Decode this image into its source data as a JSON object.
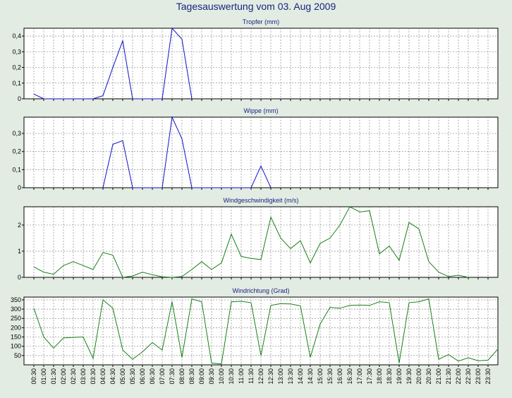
{
  "title": "Tagesauswertung vom 03. Aug 2009",
  "colors": {
    "background": "#e3ece3",
    "plot_bg": "#ffffff",
    "grid": "#8a8a8a",
    "blue": "#1010c8",
    "green": "#178017",
    "title": "#1a237e"
  },
  "time_labels": [
    "00:30",
    "01:00",
    "01:30",
    "02:00",
    "02:30",
    "03:00",
    "03:30",
    "04:00",
    "04:30",
    "05:00",
    "05:30",
    "06:00",
    "06:30",
    "07:00",
    "07:30",
    "08:00",
    "08:30",
    "09:00",
    "09:30",
    "10:00",
    "10:30",
    "11:00",
    "11:30",
    "12:00",
    "12:30",
    "13:00",
    "13:30",
    "14:00",
    "14:30",
    "15:00",
    "15:30",
    "16:00",
    "16:30",
    "17:00",
    "17:30",
    "18:00",
    "18:30",
    "19:00",
    "19:30",
    "20:00",
    "20:30",
    "21:00",
    "21:30",
    "22:00",
    "22:30",
    "23:00",
    "23:30"
  ],
  "chart_data": [
    {
      "type": "line",
      "title": "Tropfer (mm)",
      "xlabel": "",
      "ylabel": "",
      "ylim": [
        0,
        0.45
      ],
      "yticks": [
        0,
        0.1,
        0.2,
        0.3,
        0.4
      ],
      "ytick_labels": [
        "0",
        "0,1",
        "0,2",
        "0,3",
        "0,4"
      ],
      "grid": true,
      "series": [
        {
          "color": "blue",
          "points": [
            [
              0,
              0.03
            ],
            [
              1,
              0
            ],
            [
              6,
              0
            ],
            [
              7,
              0.02
            ],
            [
              8,
              0.2
            ],
            [
              9,
              0.37
            ],
            [
              10,
              0
            ],
            [
              13,
              0
            ],
            [
              14,
              0.45
            ],
            [
              15,
              0.38
            ],
            [
              16,
              0
            ]
          ]
        }
      ]
    },
    {
      "type": "line",
      "title": "Wippe (mm)",
      "xlabel": "",
      "ylabel": "",
      "ylim": [
        0,
        0.39
      ],
      "yticks": [
        0,
        0.1,
        0.2,
        0.3
      ],
      "ytick_labels": [
        "0",
        "0,1",
        "0,2",
        "0,3"
      ],
      "grid": true,
      "series": [
        {
          "color": "blue",
          "points": [
            [
              7,
              0
            ],
            [
              8,
              0.24
            ],
            [
              9,
              0.26
            ],
            [
              10,
              0
            ],
            [
              13,
              0
            ],
            [
              14,
              0.39
            ],
            [
              15,
              0.27
            ],
            [
              16,
              0
            ],
            [
              22,
              0
            ],
            [
              23,
              0.12
            ],
            [
              24,
              0
            ]
          ]
        }
      ]
    },
    {
      "type": "line",
      "title": "Windgeschwindigkeit (m/s)",
      "xlabel": "",
      "ylabel": "",
      "ylim": [
        0,
        2.7
      ],
      "yticks": [
        0,
        1,
        2
      ],
      "ytick_labels": [
        "0",
        "1",
        "2"
      ],
      "grid": true,
      "series": [
        {
          "color": "green",
          "points": [
            [
              0,
              0.4
            ],
            [
              1,
              0.2
            ],
            [
              2,
              0.12
            ],
            [
              3,
              0.45
            ],
            [
              4,
              0.6
            ],
            [
              5,
              0.45
            ],
            [
              6,
              0.3
            ],
            [
              7,
              0.95
            ],
            [
              8,
              0.85
            ],
            [
              9,
              0
            ],
            [
              10,
              0.05
            ],
            [
              11,
              0.2
            ],
            [
              12,
              0.1
            ],
            [
              13,
              0.02
            ],
            [
              14,
              0
            ],
            [
              15,
              0.03
            ],
            [
              16,
              0.3
            ],
            [
              17,
              0.6
            ],
            [
              18,
              0.3
            ],
            [
              19,
              0.55
            ],
            [
              20,
              1.65
            ],
            [
              21,
              0.8
            ],
            [
              22,
              0.72
            ],
            [
              23,
              0.68
            ],
            [
              24,
              2.3
            ],
            [
              25,
              1.5
            ],
            [
              26,
              1.1
            ],
            [
              27,
              1.4
            ],
            [
              28,
              0.55
            ],
            [
              29,
              1.3
            ],
            [
              30,
              1.5
            ],
            [
              31,
              2.0
            ],
            [
              32,
              2.7
            ],
            [
              33,
              2.5
            ],
            [
              34,
              2.55
            ],
            [
              35,
              0.9
            ],
            [
              36,
              1.2
            ],
            [
              37,
              0.65
            ],
            [
              38,
              2.1
            ],
            [
              39,
              1.85
            ],
            [
              40,
              0.6
            ],
            [
              41,
              0.2
            ],
            [
              42,
              0.03
            ],
            [
              43,
              0.08
            ],
            [
              44,
              0
            ]
          ]
        }
      ]
    },
    {
      "type": "line",
      "title": "Windrichtung (Grad)",
      "xlabel": "",
      "ylabel": "",
      "ylim": [
        0,
        365
      ],
      "yticks": [
        50,
        100,
        150,
        200,
        250,
        300,
        350
      ],
      "ytick_labels": [
        "50",
        "100",
        "150",
        "200",
        "250",
        "300",
        "350"
      ],
      "grid": true,
      "series": [
        {
          "color": "green",
          "points": [
            [
              0,
              305
            ],
            [
              1,
              150
            ],
            [
              2,
              90
            ],
            [
              3,
              145
            ],
            [
              4,
              148
            ],
            [
              5,
              150
            ],
            [
              6,
              35
            ],
            [
              7,
              350
            ],
            [
              8,
              305
            ],
            [
              9,
              80
            ],
            [
              10,
              30
            ],
            [
              11,
              70
            ],
            [
              12,
              120
            ],
            [
              13,
              80
            ],
            [
              14,
              340
            ],
            [
              15,
              40
            ],
            [
              16,
              355
            ],
            [
              17,
              340
            ],
            [
              18,
              10
            ],
            [
              19,
              5
            ],
            [
              20,
              340
            ],
            [
              21,
              342
            ],
            [
              22,
              335
            ],
            [
              23,
              50
            ],
            [
              24,
              320
            ],
            [
              25,
              330
            ],
            [
              26,
              328
            ],
            [
              27,
              318
            ],
            [
              28,
              40
            ],
            [
              29,
              220
            ],
            [
              30,
              310
            ],
            [
              31,
              305
            ],
            [
              32,
              320
            ],
            [
              33,
              322
            ],
            [
              34,
              320
            ],
            [
              35,
              340
            ],
            [
              36,
              335
            ],
            [
              37,
              10
            ],
            [
              38,
              335
            ],
            [
              39,
              340
            ],
            [
              40,
              355
            ],
            [
              41,
              30
            ],
            [
              42,
              55
            ],
            [
              43,
              20
            ],
            [
              44,
              38
            ],
            [
              45,
              22
            ],
            [
              46,
              25
            ],
            [
              47,
              85
            ]
          ]
        }
      ]
    }
  ]
}
